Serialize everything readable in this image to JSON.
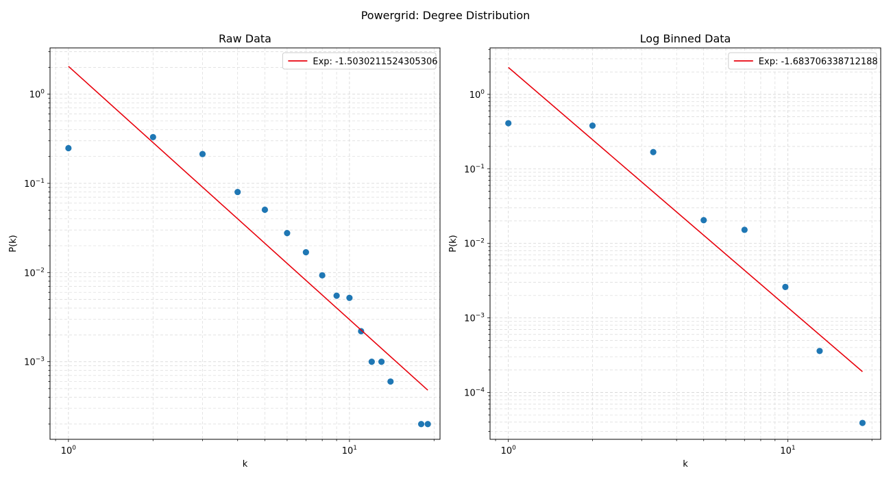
{
  "figure": {
    "suptitle": "Powergrid: Degree Distribution"
  },
  "colors": {
    "points": "#1f77b4",
    "fit": "#e8000b",
    "grid": "#d9d9d9",
    "axis": "#000000"
  },
  "chart_data": [
    {
      "type": "scatter",
      "title": "Raw Data",
      "xlabel": "k",
      "ylabel": "P(k)",
      "xscale": "log",
      "yscale": "log",
      "xlim": [
        0.86,
        21
      ],
      "ylim": [
        0.000135,
        3.3
      ],
      "xticks": [
        {
          "value": 1,
          "base": "10",
          "exp": "0"
        },
        {
          "value": 10,
          "base": "10",
          "exp": "1"
        }
      ],
      "yticks": [
        {
          "value": 0.001,
          "base": "10",
          "exp": "−3"
        },
        {
          "value": 0.01,
          "base": "10",
          "exp": "−2"
        },
        {
          "value": 0.1,
          "base": "10",
          "exp": "−1"
        },
        {
          "value": 1,
          "base": "10",
          "exp": "0"
        }
      ],
      "grid": true,
      "legend_position": "top-right",
      "series": [
        {
          "kind": "points",
          "x": [
            1,
            2,
            3,
            4,
            5,
            6,
            7,
            8,
            9,
            10,
            11,
            12,
            13,
            14,
            18,
            19
          ],
          "y": [
            0.248,
            0.33,
            0.213,
            0.08,
            0.0506,
            0.0277,
            0.0169,
            0.0093,
            0.0055,
            0.0052,
            0.0022,
            0.001,
            0.001,
            0.0006,
            0.0002,
            0.0002
          ]
        },
        {
          "kind": "line",
          "name": "Exp: -1.5030211524305306",
          "x": [
            1,
            19
          ],
          "y": [
            2.05,
            0.00048
          ]
        }
      ]
    },
    {
      "type": "scatter",
      "title": "Log Binned Data",
      "xlabel": "k",
      "ylabel": "P(k)",
      "xscale": "log",
      "yscale": "log",
      "xlim": [
        0.86,
        21.5
      ],
      "ylim": [
        2.35e-05,
        4.2
      ],
      "xticks": [
        {
          "value": 1,
          "base": "10",
          "exp": "0"
        },
        {
          "value": 10,
          "base": "10",
          "exp": "1"
        }
      ],
      "yticks": [
        {
          "value": 0.0001,
          "base": "10",
          "exp": "−4"
        },
        {
          "value": 0.001,
          "base": "10",
          "exp": "−3"
        },
        {
          "value": 0.01,
          "base": "10",
          "exp": "−2"
        },
        {
          "value": 0.1,
          "base": "10",
          "exp": "−1"
        },
        {
          "value": 1,
          "base": "10",
          "exp": "0"
        }
      ],
      "grid": true,
      "legend_position": "top-right",
      "series": [
        {
          "kind": "points",
          "x": [
            1,
            2,
            3.3,
            5,
            7,
            9.8,
            13,
            18.5
          ],
          "y": [
            0.41,
            0.38,
            0.168,
            0.0205,
            0.0152,
            0.0026,
            0.00036,
            3.9e-05
          ]
        },
        {
          "kind": "line",
          "name": "Exp: -1.683706338712188",
          "x": [
            1,
            18.5
          ],
          "y": [
            2.3,
            0.00019
          ]
        }
      ]
    }
  ]
}
